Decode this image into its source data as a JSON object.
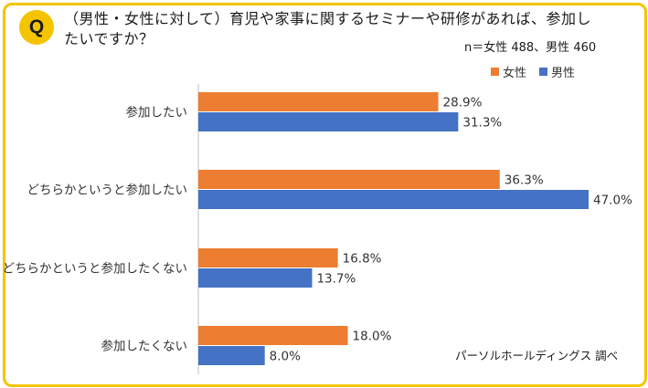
{
  "question": {
    "badge": "Q",
    "text": "（男性・女性に対して）育児や家事に関するセミナーや研修があれば、参加したいですか？"
  },
  "sample_note": "n＝女性 488、男性 460",
  "credit": "パーソルホールディングス 調べ",
  "chart_data": {
    "type": "bar",
    "orientation": "horizontal",
    "categories": [
      "参加したい",
      "どちらかというと参加したい",
      "どちらかというと参加したくない",
      "参加したくない"
    ],
    "series": [
      {
        "name": "女性",
        "color": "#ed7d31",
        "values": [
          28.9,
          36.3,
          16.8,
          18.0
        ],
        "labels": [
          "28.9%",
          "36.3%",
          "16.8%",
          "18.0%"
        ]
      },
      {
        "name": "男性",
        "color": "#4472c4",
        "values": [
          31.3,
          47.0,
          13.7,
          8.0
        ],
        "labels": [
          "31.3%",
          "47.0%",
          "13.7%",
          "8.0%"
        ]
      }
    ],
    "xlim": [
      0,
      47.0
    ],
    "legend_position": "top-right"
  }
}
